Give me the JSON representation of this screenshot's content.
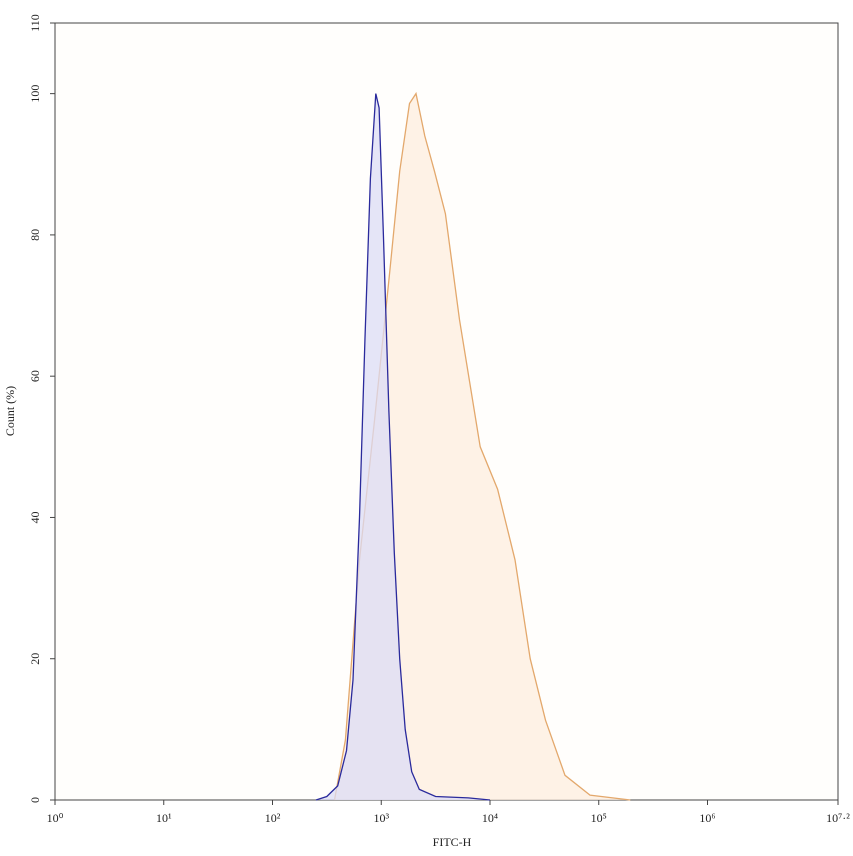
{
  "chart_data": {
    "type": "histogram-overlay",
    "x_label": "FITC-H",
    "y_label": "Count (%)",
    "x_log": true,
    "xlim": [
      1,
      15848932
    ],
    "ylim": [
      0,
      110
    ],
    "xticks": [
      {
        "value": 1,
        "label": "10⁰"
      },
      {
        "value": 10,
        "label": "10¹"
      },
      {
        "value": 100,
        "label": "10²"
      },
      {
        "value": 1000,
        "label": "10³"
      },
      {
        "value": 10000,
        "label": "10⁴"
      },
      {
        "value": 100000,
        "label": "10⁵"
      },
      {
        "value": 1000000,
        "label": "10⁶"
      },
      {
        "value": 15848932,
        "label": "10⁷·²"
      }
    ],
    "yticks": [
      0,
      20,
      40,
      60,
      80,
      100,
      110
    ],
    "series": [
      {
        "color": "#e3a86c",
        "fill": "#fdeedf",
        "x": [
          372,
          468,
          631,
          871,
          1202,
          1479,
          1820,
          2089,
          2512,
          3090,
          3890,
          5248,
          8128,
          11749,
          16982,
          23442,
          32359,
          48978,
          83176,
          194984
        ],
        "values": [
          0,
          8.5,
          34,
          54,
          75,
          89,
          98.6,
          100,
          94,
          89,
          83,
          68,
          50,
          44,
          34,
          20,
          11.3,
          3.5,
          0.7,
          0
        ]
      },
      {
        "color": "#2a2a9c",
        "fill": "#dcdcf6",
        "x": [
          251,
          316,
          398,
          479,
          550,
          631,
          708,
          794,
          891,
          955,
          1047,
          1175,
          1318,
          1479,
          1660,
          1905,
          2239,
          3162,
          6310,
          10000
        ],
        "values": [
          0,
          0.5,
          2,
          7,
          17,
          40,
          65,
          88,
          100,
          98,
          80,
          55,
          35,
          20,
          10,
          4,
          1.5,
          0.5,
          0.3,
          0
        ]
      }
    ]
  }
}
